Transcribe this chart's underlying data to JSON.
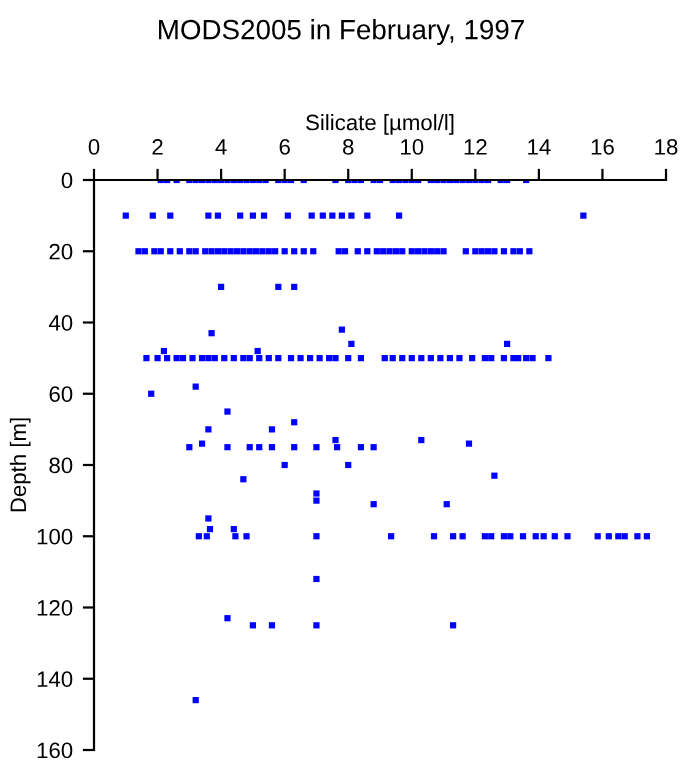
{
  "chart_data": {
    "type": "scatter",
    "title": "MODS2005 in February, 1997",
    "xlabel": "Silicate [µmol/l]",
    "ylabel": "Depth [m]",
    "xlim": [
      0,
      18
    ],
    "xticks": [
      0,
      2,
      4,
      6,
      8,
      10,
      12,
      14,
      16,
      18
    ],
    "ylim": [
      160,
      0
    ],
    "yticks": [
      0,
      20,
      40,
      60,
      80,
      100,
      120,
      140,
      160
    ],
    "grid": false,
    "marker": "square",
    "series": [
      {
        "color": "#0000ff",
        "x": [
          2.1,
          2.3,
          2.6,
          3.0,
          3.2,
          3.4,
          3.6,
          3.8,
          4.0,
          4.2,
          4.4,
          4.6,
          4.8,
          5.0,
          5.2,
          5.4,
          5.8,
          6.0,
          6.2,
          6.6,
          7.6,
          8.0,
          8.2,
          8.4,
          8.8,
          9.0,
          9.4,
          9.6,
          9.8,
          10.0,
          10.2,
          10.6,
          10.8,
          11.0,
          11.2,
          11.4,
          11.6,
          11.8,
          12.0,
          12.2,
          12.4,
          12.8,
          13.0,
          13.6,
          1.0,
          1.85,
          2.4,
          3.6,
          3.9,
          4.6,
          5.0,
          5.35,
          6.1,
          6.85,
          7.2,
          7.5,
          7.8,
          8.1,
          8.6,
          9.6,
          15.4,
          1.4,
          1.6,
          1.9,
          2.1,
          2.4,
          2.7,
          3.0,
          3.2,
          3.5,
          3.7,
          3.9,
          4.1,
          4.3,
          4.5,
          4.7,
          4.9,
          5.1,
          5.3,
          5.5,
          5.7,
          6.0,
          6.3,
          6.6,
          6.9,
          7.7,
          7.9,
          8.3,
          8.6,
          8.9,
          9.1,
          9.3,
          9.5,
          9.7,
          10.0,
          10.2,
          10.4,
          10.6,
          10.8,
          11.0,
          11.7,
          12.0,
          12.2,
          12.4,
          12.6,
          12.9,
          13.2,
          13.4,
          13.7,
          4.0,
          5.8,
          6.3,
          3.7,
          7.8,
          8.1,
          13.0,
          5.15,
          2.2,
          1.65,
          2.0,
          2.3,
          2.6,
          2.8,
          3.1,
          3.4,
          3.6,
          3.8,
          4.1,
          4.4,
          4.7,
          4.9,
          5.2,
          5.5,
          5.8,
          6.2,
          6.5,
          6.8,
          7.1,
          7.4,
          7.6,
          8.0,
          8.4,
          9.15,
          9.4,
          9.7,
          10.0,
          10.3,
          10.6,
          10.9,
          11.2,
          11.5,
          11.9,
          12.3,
          12.5,
          12.9,
          13.2,
          13.35,
          13.6,
          13.8,
          14.3,
          1.8,
          3.2,
          4.2,
          6.3,
          3.6,
          5.6,
          10.3,
          7.6,
          3.4,
          11.8,
          3.0,
          4.2,
          4.9,
          5.2,
          5.6,
          6.3,
          7.0,
          7.65,
          8.4,
          8.8,
          6.0,
          8.0,
          12.6,
          4.7,
          7.0,
          7.0,
          8.8,
          11.1,
          3.6,
          3.65,
          4.4,
          3.3,
          3.55,
          4.45,
          4.8,
          7.0,
          9.35,
          10.7,
          11.3,
          11.6,
          12.3,
          12.5,
          12.9,
          13.1,
          13.5,
          13.9,
          14.15,
          14.5,
          14.9,
          15.85,
          16.2,
          16.5,
          16.7,
          17.1,
          17.4,
          7.0,
          4.2,
          5.0,
          5.6,
          7.0,
          11.3,
          3.2
        ],
        "values": [
          0,
          0,
          0,
          0,
          0,
          0,
          0,
          0,
          0,
          0,
          0,
          0,
          0,
          0,
          0,
          0,
          0,
          0,
          0,
          0,
          0,
          0,
          0,
          0,
          0,
          0,
          0,
          0,
          0,
          0,
          0,
          0,
          0,
          0,
          0,
          0,
          0,
          0,
          0,
          0,
          0,
          0,
          0,
          0,
          10,
          10,
          10,
          10,
          10,
          10,
          10,
          10,
          10,
          10,
          10,
          10,
          10,
          10,
          10,
          10,
          10,
          20,
          20,
          20,
          20,
          20,
          20,
          20,
          20,
          20,
          20,
          20,
          20,
          20,
          20,
          20,
          20,
          20,
          20,
          20,
          20,
          20,
          20,
          20,
          20,
          20,
          20,
          20,
          20,
          20,
          20,
          20,
          20,
          20,
          20,
          20,
          20,
          20,
          20,
          20,
          20,
          20,
          20,
          20,
          20,
          20,
          20,
          20,
          20,
          30,
          30,
          30,
          43,
          42,
          46,
          46,
          48,
          48,
          50,
          50,
          50,
          50,
          50,
          50,
          50,
          50,
          50,
          50,
          50,
          50,
          50,
          50,
          50,
          50,
          50,
          50,
          50,
          50,
          50,
          50,
          50,
          50,
          50,
          50,
          50,
          50,
          50,
          50,
          50,
          50,
          50,
          50,
          50,
          50,
          50,
          50,
          50,
          50,
          50,
          50,
          60,
          58,
          65,
          68,
          70,
          70,
          73,
          73,
          74,
          74,
          75,
          75,
          75,
          75,
          75,
          75,
          75,
          75,
          75,
          75,
          80,
          80,
          83,
          84,
          88,
          90,
          91,
          91,
          95,
          98,
          98,
          100,
          100,
          100,
          100,
          100,
          100,
          100,
          100,
          100,
          100,
          100,
          100,
          100,
          100,
          100,
          100,
          100,
          100,
          100,
          100,
          100,
          100,
          100,
          100,
          112,
          123,
          125,
          125,
          125,
          125,
          146
        ]
      }
    ]
  }
}
